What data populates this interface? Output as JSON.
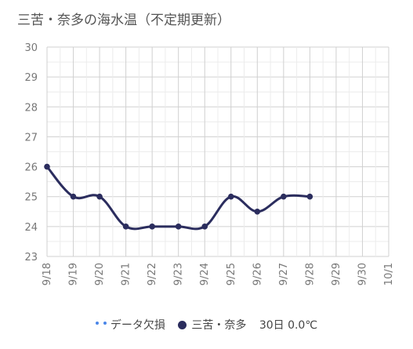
{
  "chart_data": {
    "type": "line",
    "title": "三苦・奈多の海水温（不定期更新）",
    "categories": [
      "9/18",
      "9/19",
      "9/20",
      "9/21",
      "9/22",
      "9/23",
      "9/24",
      "9/25",
      "9/26",
      "9/27",
      "9/28",
      "9/29",
      "9/30",
      "10/1"
    ],
    "series": [
      {
        "name": "三苦・奈多",
        "color": "#2b2d5e",
        "values": [
          26,
          25,
          25,
          24,
          24,
          24,
          24,
          25,
          24.5,
          25,
          25,
          null,
          null,
          null
        ]
      }
    ],
    "ylim": [
      23,
      30
    ],
    "yticks": [
      23,
      24,
      25,
      26,
      27,
      28,
      29,
      30
    ],
    "grid": true,
    "legend": {
      "position": "bottom",
      "missing_label": "データ欠損",
      "missing_color": "#4a86e8",
      "series_label": "三苦・奈多",
      "extra": "30日 0.0℃"
    }
  }
}
